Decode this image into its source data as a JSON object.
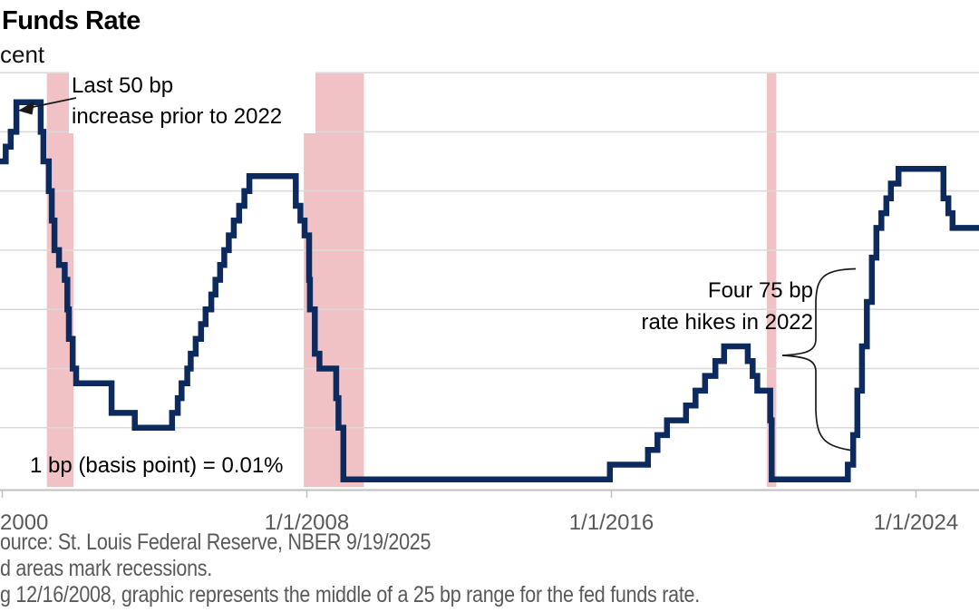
{
  "header": {
    "title": "Funds Rate",
    "subtitle": "cent"
  },
  "annotations": {
    "last_50bp": {
      "line1": "Last 50 bp",
      "line2": "increase prior to 2022"
    },
    "four_75bp": {
      "line1": "Four 75 bp",
      "line2": "rate hikes in 2022"
    },
    "basis_point_note": "1 bp (basis point) = 0.01%"
  },
  "x_axis": {
    "tick_labels": [
      {
        "year": 2000,
        "label": "2000",
        "align": "left"
      },
      {
        "year": 2008,
        "label": "1/1/2008",
        "align": "center"
      },
      {
        "year": 2016,
        "label": "1/1/2016",
        "align": "center"
      },
      {
        "year": 2024,
        "label": "1/1/2024",
        "align": "center"
      }
    ]
  },
  "footer": {
    "lines": [
      "ource: St. Louis Federal Reserve, NBER 9/19/2025",
      "d areas mark recessions.",
      "g 12/16/2008, graphic represents the middle of a 25 bp range for the fed funds rate."
    ]
  },
  "colors": {
    "line": "#0c2a5e",
    "recession_band": "#f0c1c5",
    "gridline": "#d9d9d9",
    "axis": "#bfbfbf",
    "label_gray": "#595959",
    "annotation_ink": "#1a1a1a"
  },
  "chart_data": {
    "type": "line",
    "step": true,
    "title": "Funds Rate",
    "ylabel": "cent",
    "ylim": [
      0,
      7
    ],
    "grid_interval_pct": 1,
    "x_range_decimal_years": [
      1999.94,
      2025.72
    ],
    "recession_bands_decimal_years": [
      [
        2001.17,
        2001.87
      ],
      [
        2007.92,
        2009.5
      ],
      [
        2020.08,
        2020.33
      ]
    ],
    "series": [
      {
        "name": "fed-funds-target-rate-pct",
        "points": [
          [
            1999.85,
            5.5
          ],
          [
            2000.09,
            5.75
          ],
          [
            2000.22,
            6.0
          ],
          [
            2000.37,
            6.5
          ],
          [
            2001.01,
            6.0
          ],
          [
            2001.08,
            5.5
          ],
          [
            2001.22,
            5.0
          ],
          [
            2001.3,
            4.5
          ],
          [
            2001.37,
            4.0
          ],
          [
            2001.49,
            3.75
          ],
          [
            2001.64,
            3.5
          ],
          [
            2001.71,
            3.0
          ],
          [
            2001.75,
            2.5
          ],
          [
            2001.85,
            2.0
          ],
          [
            2001.94,
            1.75
          ],
          [
            2002.87,
            1.25
          ],
          [
            2003.48,
            1.0
          ],
          [
            2004.46,
            1.25
          ],
          [
            2004.61,
            1.5
          ],
          [
            2004.71,
            1.75
          ],
          [
            2004.86,
            2.0
          ],
          [
            2004.95,
            2.25
          ],
          [
            2005.08,
            2.5
          ],
          [
            2005.22,
            2.75
          ],
          [
            2005.34,
            3.0
          ],
          [
            2005.49,
            3.25
          ],
          [
            2005.6,
            3.5
          ],
          [
            2005.72,
            3.75
          ],
          [
            2005.83,
            4.0
          ],
          [
            2005.95,
            4.25
          ],
          [
            2006.08,
            4.5
          ],
          [
            2006.22,
            4.75
          ],
          [
            2006.36,
            5.0
          ],
          [
            2006.49,
            5.25
          ],
          [
            2007.71,
            4.75
          ],
          [
            2007.83,
            4.5
          ],
          [
            2007.94,
            4.25
          ],
          [
            2008.06,
            3.5
          ],
          [
            2008.08,
            3.0
          ],
          [
            2008.21,
            2.25
          ],
          [
            2008.33,
            2.0
          ],
          [
            2008.77,
            1.5
          ],
          [
            2008.83,
            1.0
          ],
          [
            2008.96,
            0.125
          ],
          [
            2015.96,
            0.375
          ],
          [
            2016.96,
            0.625
          ],
          [
            2017.21,
            0.875
          ],
          [
            2017.46,
            1.125
          ],
          [
            2017.96,
            1.375
          ],
          [
            2018.21,
            1.625
          ],
          [
            2018.46,
            1.875
          ],
          [
            2018.73,
            2.125
          ],
          [
            2018.96,
            2.375
          ],
          [
            2019.58,
            2.125
          ],
          [
            2019.71,
            1.875
          ],
          [
            2019.83,
            1.625
          ],
          [
            2020.17,
            1.125
          ],
          [
            2020.21,
            0.125
          ],
          [
            2022.21,
            0.375
          ],
          [
            2022.35,
            0.875
          ],
          [
            2022.46,
            1.625
          ],
          [
            2022.58,
            2.375
          ],
          [
            2022.71,
            3.125
          ],
          [
            2022.84,
            3.875
          ],
          [
            2022.96,
            4.375
          ],
          [
            2023.09,
            4.625
          ],
          [
            2023.22,
            4.875
          ],
          [
            2023.34,
            5.125
          ],
          [
            2023.54,
            5.375
          ],
          [
            2024.72,
            4.875
          ],
          [
            2024.85,
            4.625
          ],
          [
            2024.96,
            4.375
          ],
          [
            2025.72,
            4.375
          ]
        ]
      }
    ]
  }
}
